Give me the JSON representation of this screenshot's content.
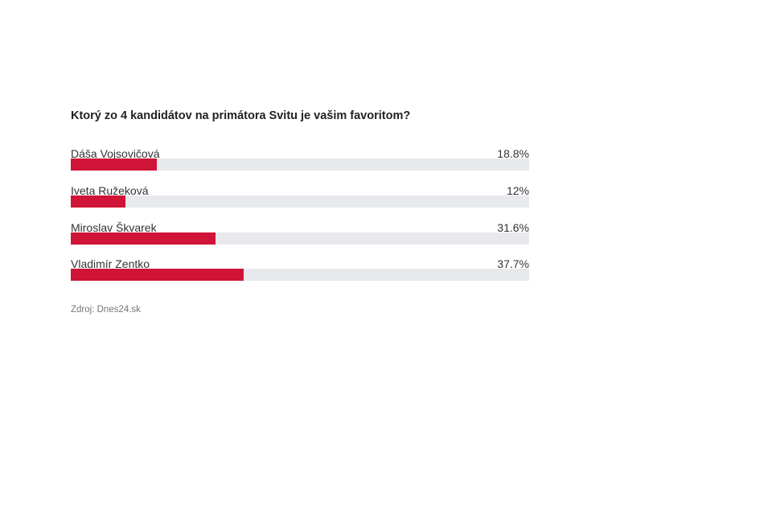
{
  "chart_data": {
    "type": "bar",
    "orientation": "horizontal",
    "title": "Ktorý zo 4 kandidátov na primátora Svitu je vašim favoritom?",
    "categories": [
      "Dáša Vojsovičová",
      "Iveta Ružeková",
      "Miroslav Škvarek",
      "Vladimír Zentko"
    ],
    "values": [
      18.8,
      12,
      31.6,
      37.7
    ],
    "value_labels": [
      "18.8%",
      "12%",
      "31.6%",
      "37.7%"
    ],
    "xlim": [
      0,
      100
    ],
    "grid": false,
    "bar_color": "#d01437",
    "track_color": "#e8e9ec",
    "source": "Zdroj: Dnes24.sk"
  }
}
